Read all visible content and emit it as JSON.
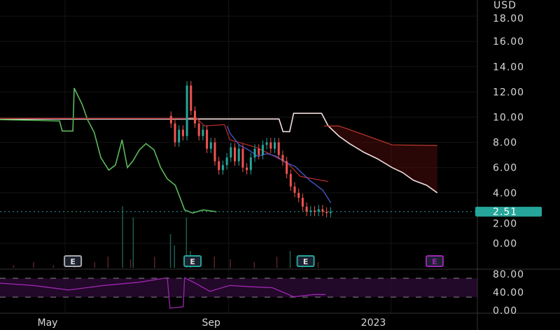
{
  "chart_data": {
    "type": "candlestick",
    "currency": "USD",
    "last_price": "2.51",
    "colors": {
      "up": "#26a69a",
      "down": "#ef5350",
      "lagging": "#5cb85c",
      "base": "#b22a2a",
      "conversion": "#4a5bd6",
      "spanA": "#f2dede",
      "spanB": "#c0392b",
      "rsi": "#9c27b0",
      "earnings": "#9c27b0"
    },
    "price_axis": {
      "min": 0,
      "max": 18,
      "ticks": [
        "18.00",
        "16.00",
        "14.00",
        "12.00",
        "10.00",
        "8.00",
        "6.00",
        "4.00",
        "2.00",
        "0.00"
      ]
    },
    "rsi_axis": {
      "ticks": [
        "80.00",
        "40.00",
        "0.00"
      ],
      "bands": [
        70,
        30
      ]
    },
    "x_ticks": [
      {
        "label": "May",
        "date": "2022-05-01"
      },
      {
        "label": "Sep",
        "date": "2022-09-01"
      },
      {
        "label": "2023",
        "date": "2023-01-01"
      }
    ],
    "closes": [
      [
        "2022-08-01",
        9.5
      ],
      [
        "2022-08-04",
        8.0
      ],
      [
        "2022-08-07",
        9.0
      ],
      [
        "2022-08-10",
        8.5
      ],
      [
        "2022-08-13",
        12.5
      ],
      [
        "2022-08-16",
        10.5
      ],
      [
        "2022-08-19",
        9.5
      ],
      [
        "2022-08-22",
        8.5
      ],
      [
        "2022-08-25",
        9.0
      ],
      [
        "2022-08-28",
        7.5
      ],
      [
        "2022-08-31",
        8.0
      ],
      [
        "2022-09-03",
        6.5
      ],
      [
        "2022-09-06",
        5.8
      ],
      [
        "2022-09-09",
        6.2
      ],
      [
        "2022-09-12",
        6.8
      ],
      [
        "2022-09-15",
        7.6
      ],
      [
        "2022-09-18",
        6.5
      ],
      [
        "2022-09-21",
        7.5
      ],
      [
        "2022-09-24",
        6.0
      ],
      [
        "2022-09-27",
        5.8
      ],
      [
        "2022-09-30",
        6.8
      ],
      [
        "2022-10-03",
        7.5
      ],
      [
        "2022-10-06",
        7.0
      ],
      [
        "2022-10-09",
        7.8
      ],
      [
        "2022-10-12",
        8.0
      ],
      [
        "2022-10-15",
        7.5
      ],
      [
        "2022-10-18",
        8.0
      ],
      [
        "2022-10-21",
        7.0
      ],
      [
        "2022-10-24",
        6.5
      ],
      [
        "2022-10-27",
        5.5
      ],
      [
        "2022-10-30",
        4.5
      ],
      [
        "2022-11-02",
        4.0
      ],
      [
        "2022-11-05",
        3.6
      ],
      [
        "2022-11-08",
        2.9
      ],
      [
        "2022-11-11",
        2.5
      ],
      [
        "2022-11-14",
        2.6
      ],
      [
        "2022-11-17",
        2.5
      ],
      [
        "2022-11-20",
        2.7
      ],
      [
        "2022-11-23",
        2.5
      ],
      [
        "2022-11-26",
        2.4
      ],
      [
        "2022-11-29",
        2.51
      ]
    ],
    "lagging_span": [
      [
        "2022-03-26",
        9.8
      ],
      [
        "2022-05-10",
        9.7
      ],
      [
        "2022-05-12",
        8.9
      ],
      [
        "2022-05-20",
        8.9
      ],
      [
        "2022-05-21",
        12.3
      ],
      [
        "2022-05-27",
        11.0
      ],
      [
        "2022-05-31",
        9.8
      ],
      [
        "2022-06-05",
        8.8
      ],
      [
        "2022-06-10",
        6.8
      ],
      [
        "2022-06-16",
        5.8
      ],
      [
        "2022-06-21",
        6.2
      ],
      [
        "2022-06-26",
        8.2
      ],
      [
        "2022-06-30",
        6.0
      ],
      [
        "2022-07-04",
        6.5
      ],
      [
        "2022-07-09",
        7.4
      ],
      [
        "2022-07-14",
        7.9
      ],
      [
        "2022-07-20",
        7.4
      ],
      [
        "2022-07-25",
        6.0
      ],
      [
        "2022-07-30",
        5.1
      ],
      [
        "2022-08-05",
        4.6
      ],
      [
        "2022-08-09",
        3.5
      ],
      [
        "2022-08-12",
        2.65
      ],
      [
        "2022-08-18",
        2.4
      ],
      [
        "2022-08-26",
        2.65
      ],
      [
        "2022-09-05",
        2.5
      ]
    ],
    "base_line": [
      [
        "2022-03-26",
        9.9
      ],
      [
        "2022-08-14",
        9.9
      ],
      [
        "2022-08-20",
        10.0
      ],
      [
        "2022-08-27",
        9.3
      ],
      [
        "2022-09-11",
        9.4
      ],
      [
        "2022-09-15",
        8.2
      ],
      [
        "2022-09-25",
        7.9
      ],
      [
        "2022-10-05",
        7.6
      ],
      [
        "2022-10-28",
        6.4
      ],
      [
        "2022-11-07",
        5.3
      ],
      [
        "2022-11-28",
        4.9
      ]
    ],
    "conversion_line": [
      [
        "2022-09-13",
        9.3
      ],
      [
        "2022-09-15",
        8.75
      ],
      [
        "2022-09-22",
        7.8
      ],
      [
        "2022-09-29",
        7.4
      ],
      [
        "2022-10-06",
        6.9
      ],
      [
        "2022-10-13",
        7.1
      ],
      [
        "2022-10-20",
        6.9
      ],
      [
        "2022-10-27",
        6.4
      ],
      [
        "2022-11-03",
        6.1
      ],
      [
        "2022-11-14",
        5.0
      ],
      [
        "2022-11-24",
        4.2
      ],
      [
        "2022-11-30",
        3.2
      ]
    ],
    "span_a": [
      [
        "2022-03-26",
        9.85
      ],
      [
        "2022-10-22",
        9.85
      ],
      [
        "2022-10-25",
        8.85
      ],
      [
        "2022-10-30",
        8.85
      ],
      [
        "2022-11-02",
        10.3
      ],
      [
        "2022-11-23",
        10.3
      ],
      [
        "2022-11-28",
        9.3
      ],
      [
        "2022-12-06",
        8.5
      ],
      [
        "2022-12-14",
        7.9
      ],
      [
        "2022-12-25",
        7.2
      ],
      [
        "2023-01-04",
        6.7
      ],
      [
        "2023-01-15",
        6.0
      ],
      [
        "2023-01-23",
        5.6
      ],
      [
        "2023-01-31",
        5.0
      ],
      [
        "2023-02-10",
        4.6
      ],
      [
        "2023-02-18",
        4.0
      ]
    ],
    "span_b": [
      [
        "2022-11-25",
        9.3
      ],
      [
        "2022-12-06",
        9.3
      ],
      [
        "2022-12-25",
        8.6
      ],
      [
        "2023-01-15",
        7.8
      ],
      [
        "2023-02-18",
        7.75
      ]
    ],
    "volume": [
      [
        "2022-04-05",
        1
      ],
      [
        "2022-04-20",
        2
      ],
      [
        "2022-05-05",
        1
      ],
      [
        "2022-05-21",
        3
      ],
      [
        "2022-06-05",
        2
      ],
      [
        "2022-06-15",
        4
      ],
      [
        "2022-06-26",
        22
      ],
      [
        "2022-07-02",
        3
      ],
      [
        "2022-07-04",
        18
      ],
      [
        "2022-07-20",
        4
      ],
      [
        "2022-08-01",
        12
      ],
      [
        "2022-08-04",
        8
      ],
      [
        "2022-08-13",
        18
      ],
      [
        "2022-08-16",
        6
      ],
      [
        "2022-09-03",
        4
      ],
      [
        "2022-09-15",
        3
      ],
      [
        "2022-10-03",
        2
      ],
      [
        "2022-10-20",
        4
      ],
      [
        "2022-10-30",
        6
      ],
      [
        "2022-11-08",
        3
      ],
      [
        "2022-11-20",
        2
      ]
    ],
    "rsi": [
      [
        "2022-03-26",
        60
      ],
      [
        "2022-04-20",
        55
      ],
      [
        "2022-05-17",
        45
      ],
      [
        "2022-06-12",
        55
      ],
      [
        "2022-07-09",
        62
      ],
      [
        "2022-07-30",
        72
      ],
      [
        "2022-08-01",
        5
      ],
      [
        "2022-08-11",
        8
      ],
      [
        "2022-08-12",
        72
      ],
      [
        "2022-08-20",
        60
      ],
      [
        "2022-08-31",
        42
      ],
      [
        "2022-09-15",
        55
      ],
      [
        "2022-10-01",
        52
      ],
      [
        "2022-10-17",
        50
      ],
      [
        "2022-11-02",
        30
      ],
      [
        "2022-11-17",
        35
      ],
      [
        "2022-11-26",
        35
      ]
    ],
    "earnings": [
      {
        "label": "E",
        "date": "2022-05-20",
        "style": "past"
      },
      {
        "label": "E",
        "date": "2022-08-18",
        "style": "past-green"
      },
      {
        "label": "E",
        "date": "2022-11-11",
        "style": "past-green"
      },
      {
        "label": "E",
        "date": "2023-02-16",
        "style": "future"
      }
    ]
  }
}
